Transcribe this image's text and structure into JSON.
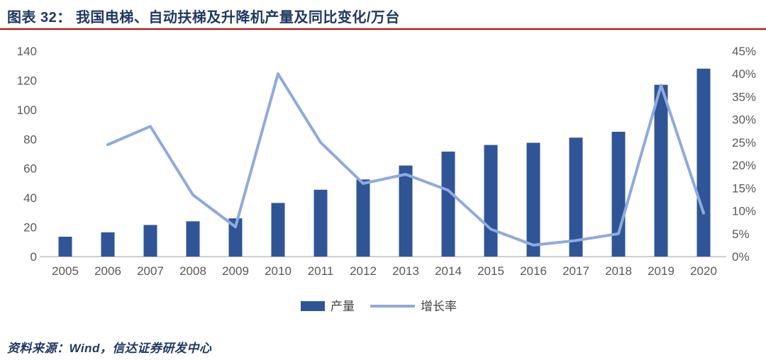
{
  "header": {
    "title": "图表 32： 我国电梯、自动扶梯及升降机产量及同比变化/万台"
  },
  "source_note": "资料来源：Wind，信达证券研发中心",
  "colors": {
    "navy": "#1F3864",
    "divider": "#C00000",
    "bar": "#2F5597",
    "line": "#8FAADC",
    "axis-text": "#595959",
    "baseline": "#BFBFBF",
    "legend-text": "#404040"
  },
  "chart_data": {
    "type": "bar",
    "subtype": "bar+line combo, dual y-axes",
    "title": "我国电梯、自动扶梯及升降机产量及同比变化/万台",
    "categories": [
      "2005",
      "2006",
      "2007",
      "2008",
      "2009",
      "2010",
      "2011",
      "2012",
      "2013",
      "2014",
      "2015",
      "2016",
      "2017",
      "2018",
      "2019",
      "2020"
    ],
    "series": [
      {
        "name": "产量",
        "type": "bar",
        "axis": "left",
        "unit": "万台",
        "values": [
          13.5,
          16.5,
          21.5,
          24,
          26,
          36.5,
          45.5,
          52.5,
          62,
          71.5,
          76,
          77.5,
          81,
          85,
          117,
          128
        ]
      },
      {
        "name": "增长率",
        "type": "line",
        "axis": "right",
        "unit": "%",
        "values": [
          null,
          24.5,
          28.5,
          13.5,
          6.5,
          40,
          25,
          16,
          18,
          14.5,
          6,
          2.5,
          3.5,
          5,
          37.5,
          9.5
        ]
      }
    ],
    "left_axis": {
      "min": 0,
      "max": 140,
      "step": 20,
      "tick_labels": [
        "0",
        "20",
        "40",
        "60",
        "80",
        "100",
        "120",
        "140"
      ]
    },
    "right_axis": {
      "min": 0,
      "max": 45,
      "step": 5,
      "tick_labels": [
        "0%",
        "5%",
        "10%",
        "15%",
        "20%",
        "25%",
        "30%",
        "35%",
        "40%",
        "45%"
      ]
    },
    "legend": {
      "position": "bottom-center",
      "items": [
        "产量",
        "增长率"
      ]
    },
    "grid": false
  }
}
